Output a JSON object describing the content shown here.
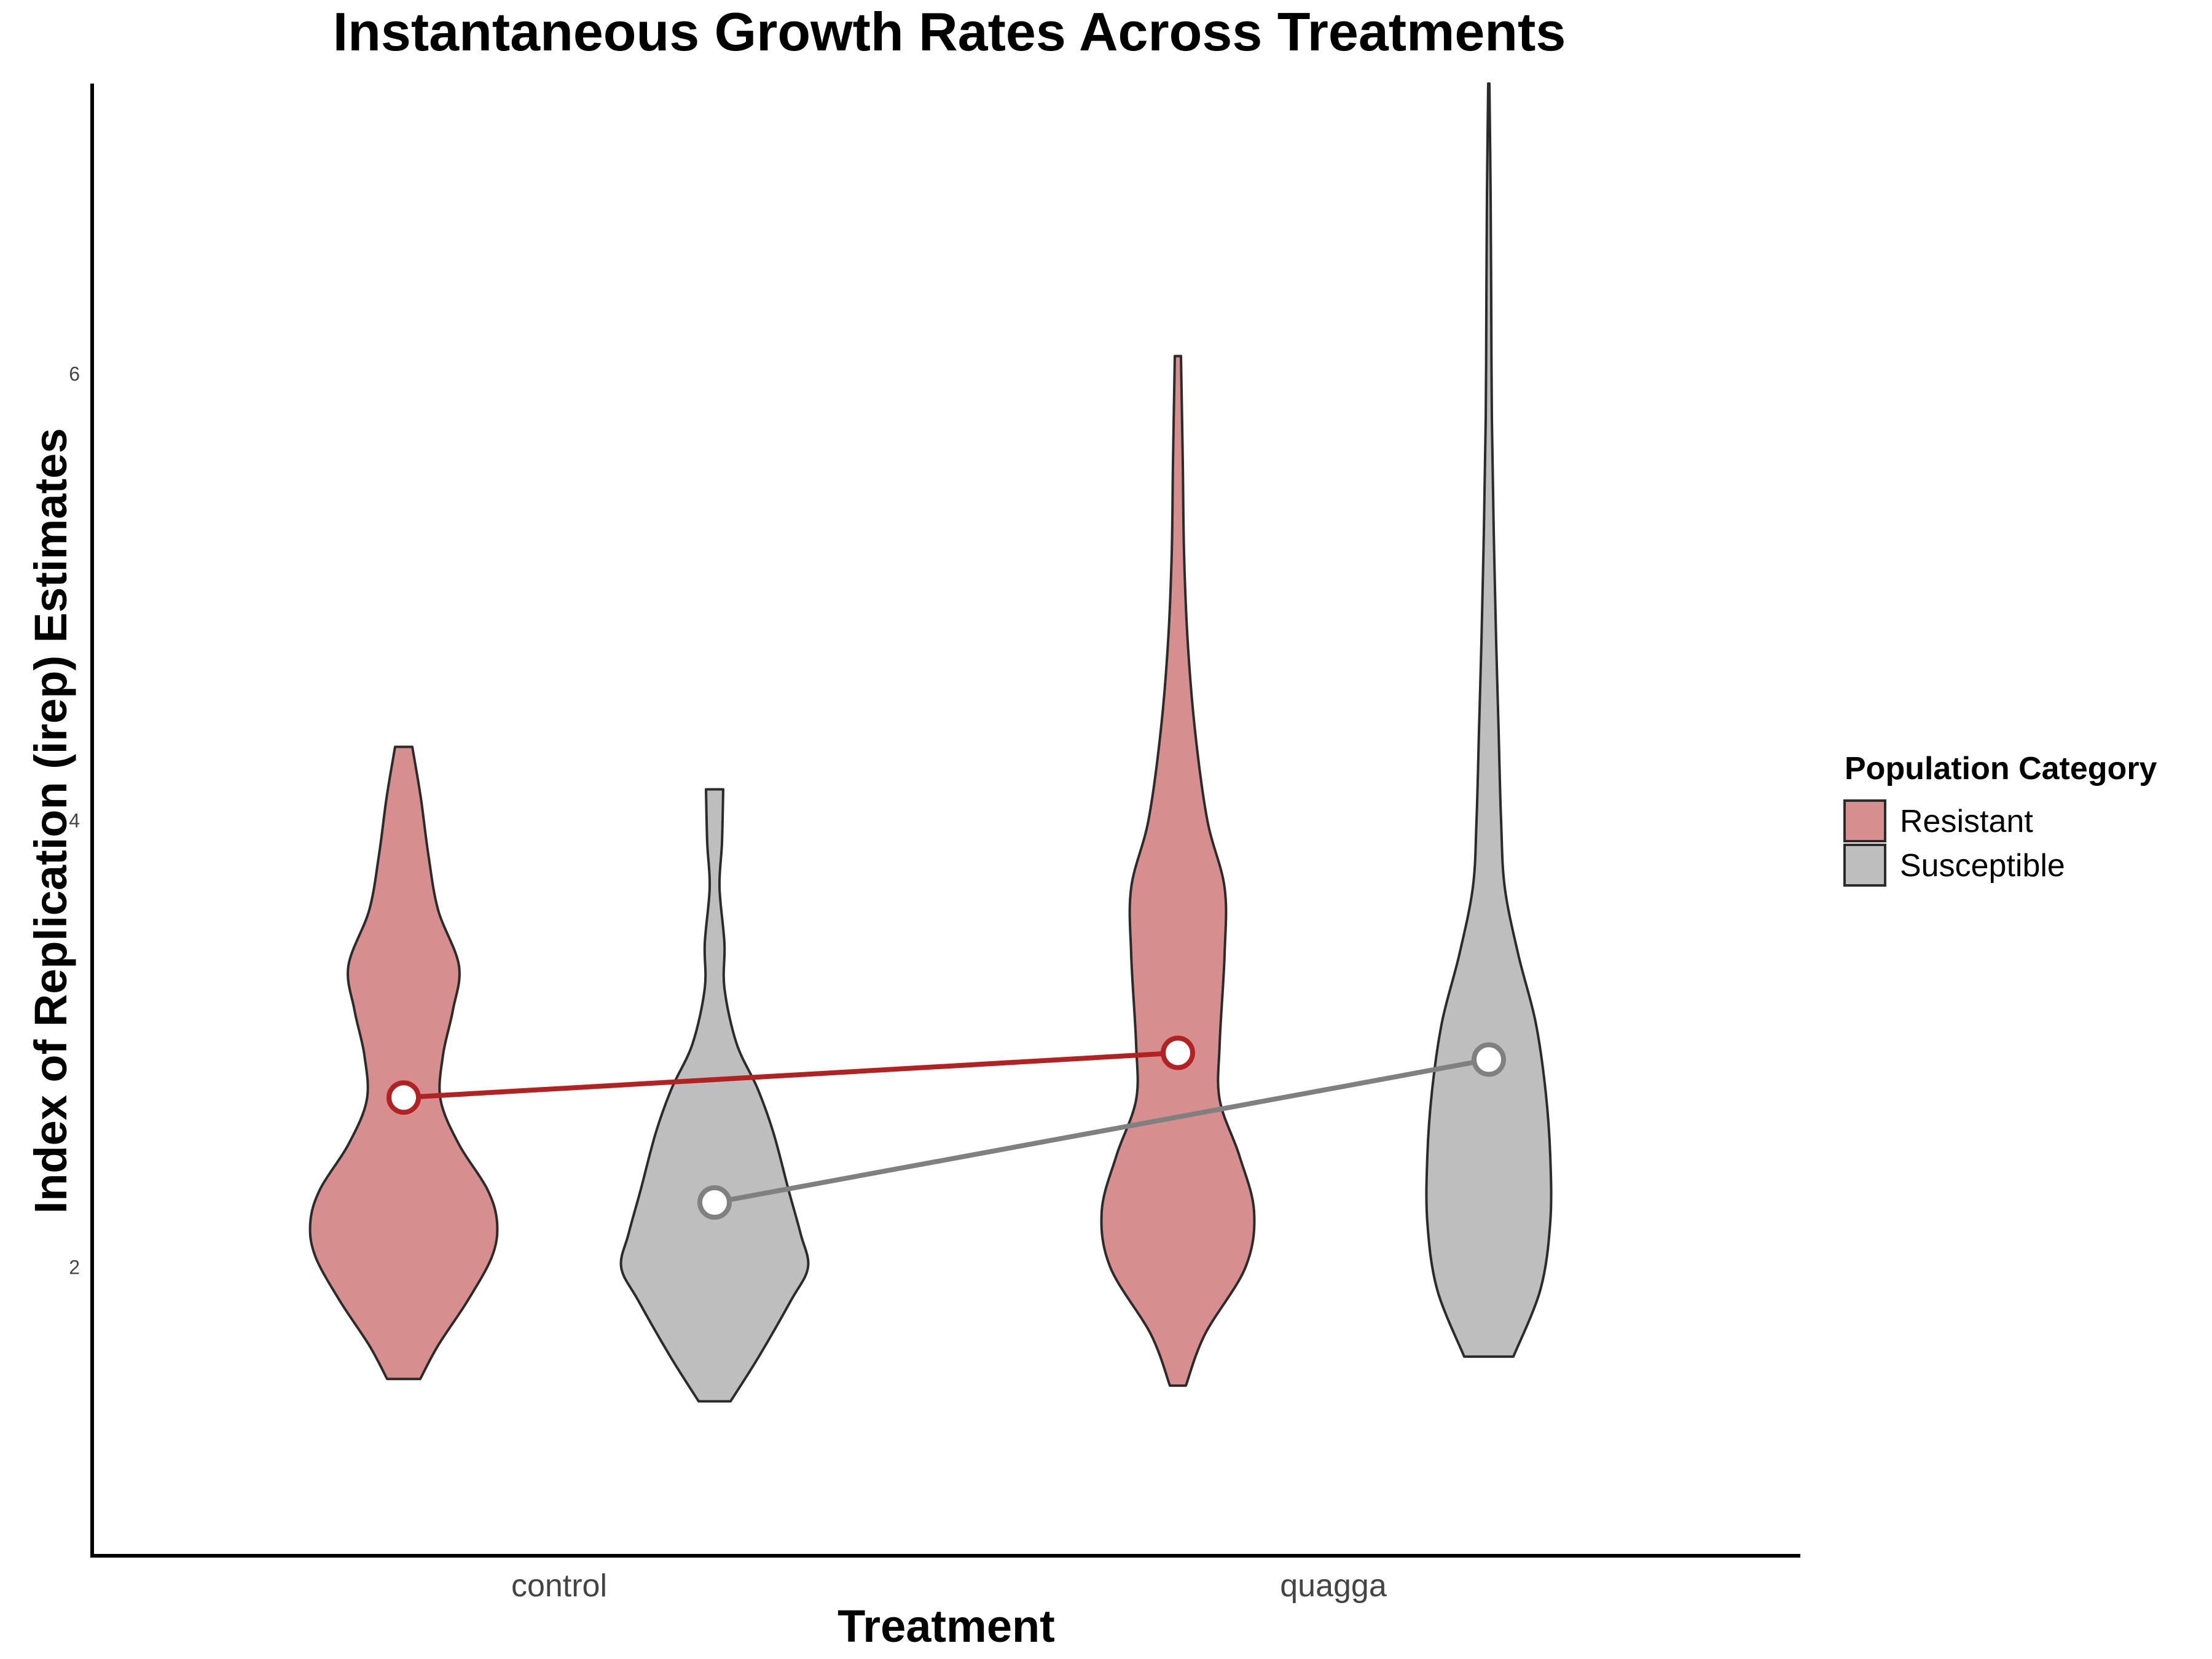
{
  "chart_data": {
    "type": "violin",
    "title": "Instantaneous Growth Rates Across Treatments",
    "xlabel": "Treatment",
    "ylabel": "Index of Replication (irep) Estimates",
    "categories": [
      "control",
      "quagga"
    ],
    "ylim": [
      0.7,
      7.3
    ],
    "yticks": [
      2,
      4,
      6
    ],
    "grid": false,
    "legend": {
      "title": "Population Category",
      "position": "right",
      "entries": [
        "Resistant",
        "Susceptible"
      ]
    },
    "series": [
      {
        "name": "Resistant",
        "fill": "#d78e8e",
        "line": "#b22222",
        "means": [
          2.76,
          2.96
        ],
        "violins": [
          {
            "category": "control",
            "min": 1.5,
            "max": 4.33,
            "profile": [
              [
                1.5,
                0.135
              ],
              [
                1.65,
                0.28
              ],
              [
                1.85,
                0.52
              ],
              [
                2.05,
                0.72
              ],
              [
                2.2,
                0.76
              ],
              [
                2.35,
                0.68
              ],
              [
                2.55,
                0.45
              ],
              [
                2.75,
                0.3
              ],
              [
                2.95,
                0.32
              ],
              [
                3.15,
                0.4
              ],
              [
                3.35,
                0.45
              ],
              [
                3.6,
                0.28
              ],
              [
                3.85,
                0.2
              ],
              [
                4.1,
                0.14
              ],
              [
                4.33,
                0.07
              ]
            ]
          },
          {
            "category": "quagga",
            "min": 1.47,
            "max": 6.08,
            "profile": [
              [
                1.47,
                0.065
              ],
              [
                1.7,
                0.22
              ],
              [
                2.0,
                0.55
              ],
              [
                2.25,
                0.62
              ],
              [
                2.5,
                0.5
              ],
              [
                2.75,
                0.34
              ],
              [
                3.0,
                0.34
              ],
              [
                3.4,
                0.38
              ],
              [
                3.7,
                0.38
              ],
              [
                4.0,
                0.24
              ],
              [
                4.4,
                0.14
              ],
              [
                4.8,
                0.08
              ],
              [
                5.2,
                0.05
              ],
              [
                5.6,
                0.04
              ],
              [
                6.08,
                0.025
              ]
            ]
          }
        ]
      },
      {
        "name": "Susceptible",
        "fill": "#bebebe",
        "line": "#808080",
        "means": [
          2.29,
          2.93
        ],
        "violins": [
          {
            "category": "control",
            "min": 1.4,
            "max": 4.14,
            "profile": [
              [
                1.4,
                0.13
              ],
              [
                1.6,
                0.36
              ],
              [
                1.85,
                0.62
              ],
              [
                2.0,
                0.76
              ],
              [
                2.15,
                0.7
              ],
              [
                2.35,
                0.6
              ],
              [
                2.6,
                0.48
              ],
              [
                2.8,
                0.35
              ],
              [
                3.0,
                0.18
              ],
              [
                3.25,
                0.08
              ],
              [
                3.45,
                0.08
              ],
              [
                3.7,
                0.04
              ],
              [
                3.9,
                0.06
              ],
              [
                4.14,
                0.07
              ]
            ]
          },
          {
            "category": "quagga",
            "min": 1.6,
            "max": 7.3,
            "profile": [
              [
                1.6,
                0.2
              ],
              [
                1.9,
                0.42
              ],
              [
                2.2,
                0.5
              ],
              [
                2.5,
                0.5
              ],
              [
                2.8,
                0.46
              ],
              [
                3.1,
                0.38
              ],
              [
                3.4,
                0.24
              ],
              [
                3.7,
                0.13
              ],
              [
                4.0,
                0.1
              ],
              [
                4.4,
                0.08
              ],
              [
                4.8,
                0.06
              ],
              [
                5.3,
                0.04
              ],
              [
                5.8,
                0.025
              ],
              [
                6.3,
                0.02
              ],
              [
                6.8,
                0.015
              ],
              [
                7.3,
                0.005
              ]
            ]
          }
        ]
      }
    ]
  }
}
